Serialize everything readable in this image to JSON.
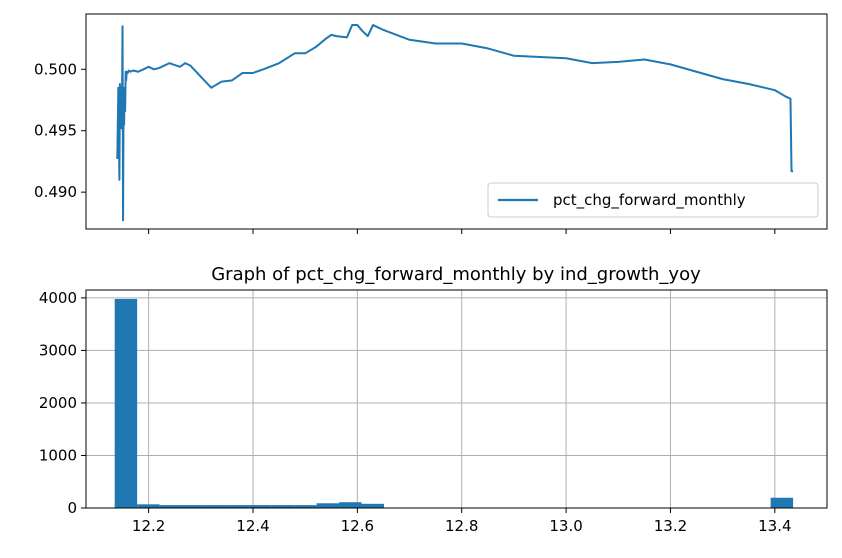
{
  "chart_data": [
    {
      "type": "line",
      "series": [
        {
          "name": "pct_chg_forward_monthly",
          "color": "#1f77b4",
          "x": [
            12.14,
            12.142,
            12.144,
            12.145,
            12.146,
            12.147,
            12.148,
            12.149,
            12.15,
            12.151,
            12.152,
            12.153,
            12.154,
            12.155,
            12.156,
            12.157,
            12.158,
            12.16,
            12.162,
            12.165,
            12.17,
            12.18,
            12.19,
            12.2,
            12.21,
            12.22,
            12.24,
            12.26,
            12.27,
            12.28,
            12.3,
            12.32,
            12.34,
            12.36,
            12.38,
            12.4,
            12.42,
            12.45,
            12.48,
            12.5,
            12.52,
            12.54,
            12.55,
            12.56,
            12.58,
            12.59,
            12.6,
            12.61,
            12.62,
            12.63,
            12.65,
            12.7,
            12.75,
            12.8,
            12.85,
            12.9,
            12.95,
            13.0,
            13.05,
            13.1,
            13.15,
            13.2,
            13.25,
            13.3,
            13.35,
            13.38,
            13.4,
            13.42,
            13.43,
            13.432,
            13.435
          ],
          "y": [
            0.4927,
            0.4985,
            0.491,
            0.4988,
            0.4962,
            0.4985,
            0.4952,
            0.4973,
            0.5035,
            0.4877,
            0.4972,
            0.4955,
            0.4985,
            0.4966,
            0.4998,
            0.4991,
            0.4998,
            0.4997,
            0.4999,
            0.4998,
            0.4999,
            0.4998,
            0.5,
            0.5002,
            0.5,
            0.5001,
            0.5005,
            0.5002,
            0.5005,
            0.5003,
            0.4994,
            0.4985,
            0.499,
            0.4991,
            0.4997,
            0.4997,
            0.5,
            0.5005,
            0.5013,
            0.5013,
            0.5018,
            0.5025,
            0.5028,
            0.5027,
            0.5026,
            0.5036,
            0.5036,
            0.5031,
            0.5027,
            0.5036,
            0.5032,
            0.5024,
            0.5021,
            0.5021,
            0.5017,
            0.5011,
            0.501,
            0.5009,
            0.5005,
            0.5006,
            0.5008,
            0.5004,
            0.4998,
            0.4992,
            0.4988,
            0.4985,
            0.4983,
            0.4978,
            0.4976,
            0.4917,
            0.4917
          ]
        }
      ],
      "ylim": [
        0.487,
        0.5045
      ],
      "yticks": [
        0.49,
        0.495,
        0.5
      ],
      "ytick_labels": [
        "0.490",
        "0.495",
        "0.500"
      ],
      "xlim": [
        12.08,
        13.5
      ],
      "xticks": [
        12.2,
        12.4,
        12.6,
        12.8,
        13.0,
        13.2,
        13.4
      ],
      "show_xtick_labels": false,
      "grid": false,
      "legend": {
        "position": "lower-right",
        "entries": [
          "pct_chg_forward_monthly"
        ]
      }
    },
    {
      "type": "bar",
      "title": "Graph of pct_chg_forward_monthly by ind_growth_yoy",
      "color": "#1f77b4",
      "bins": [
        {
          "x0": 12.135,
          "x1": 12.178,
          "value": 3980
        },
        {
          "x0": 12.178,
          "x1": 12.221,
          "value": 70
        },
        {
          "x0": 12.221,
          "x1": 12.264,
          "value": 55
        },
        {
          "x0": 12.264,
          "x1": 12.307,
          "value": 55
        },
        {
          "x0": 12.307,
          "x1": 12.35,
          "value": 55
        },
        {
          "x0": 12.35,
          "x1": 12.393,
          "value": 55
        },
        {
          "x0": 12.393,
          "x1": 12.436,
          "value": 55
        },
        {
          "x0": 12.436,
          "x1": 12.479,
          "value": 55
        },
        {
          "x0": 12.479,
          "x1": 12.522,
          "value": 55
        },
        {
          "x0": 12.522,
          "x1": 12.565,
          "value": 90
        },
        {
          "x0": 12.565,
          "x1": 12.608,
          "value": 110
        },
        {
          "x0": 12.608,
          "x1": 12.651,
          "value": 80
        },
        {
          "x0": 13.392,
          "x1": 13.435,
          "value": 195
        }
      ],
      "ylim": [
        0,
        4150
      ],
      "yticks": [
        0,
        1000,
        2000,
        3000,
        4000
      ],
      "ytick_labels": [
        "0",
        "1000",
        "2000",
        "3000",
        "4000"
      ],
      "xlim": [
        12.08,
        13.5
      ],
      "xticks": [
        12.2,
        12.4,
        12.6,
        12.8,
        13.0,
        13.2,
        13.4
      ],
      "xtick_labels": [
        "12.2",
        "12.4",
        "12.6",
        "12.8",
        "13.0",
        "13.2",
        "13.4"
      ],
      "grid": true
    }
  ]
}
